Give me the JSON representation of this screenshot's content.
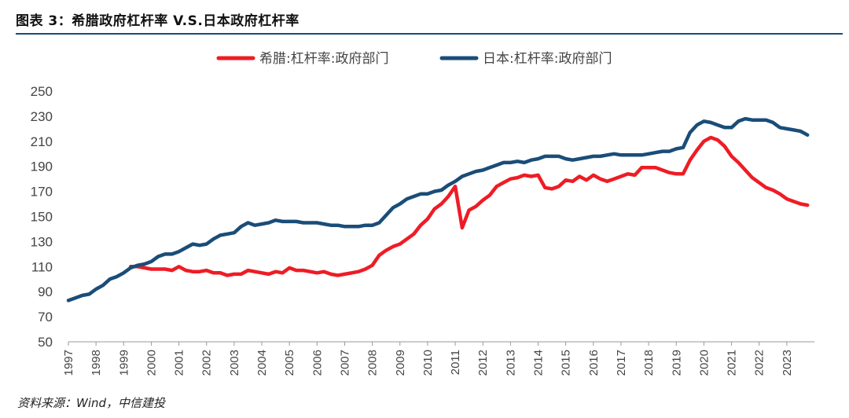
{
  "header": {
    "title": "图表 3：希腊政府杠杆率 V.S.日本政府杠杆率"
  },
  "footer": {
    "source": "资料来源：Wind，中信建投"
  },
  "chart_data": {
    "type": "line",
    "title": "图表 3：希腊政府杠杆率 V.S.日本政府杠杆率",
    "xlabel": "",
    "ylabel": "",
    "xlim": [
      1997,
      2024
    ],
    "ylim": [
      50,
      250
    ],
    "yticks": [
      50,
      70,
      90,
      110,
      130,
      150,
      170,
      190,
      210,
      230,
      250
    ],
    "xticks": [
      "1997",
      "1998",
      "1999",
      "2000",
      "2001",
      "2002",
      "2003",
      "2004",
      "2005",
      "2006",
      "2007",
      "2008",
      "2009",
      "2010",
      "2011",
      "2012",
      "2013",
      "2014",
      "2015",
      "2016",
      "2017",
      "2018",
      "2019",
      "2020",
      "2021",
      "2022",
      "2023"
    ],
    "grid": false,
    "legend_position": "top",
    "series": [
      {
        "name": "希腊:杠杆率:政府部门",
        "color": "#ee1c25",
        "points": [
          [
            1999.25,
            110
          ],
          [
            1999.5,
            110
          ],
          [
            1999.75,
            109
          ],
          [
            2000,
            108
          ],
          [
            2000.25,
            108
          ],
          [
            2000.5,
            108
          ],
          [
            2000.75,
            107
          ],
          [
            2001,
            110
          ],
          [
            2001.25,
            107
          ],
          [
            2001.5,
            106
          ],
          [
            2001.75,
            106
          ],
          [
            2002,
            107
          ],
          [
            2002.25,
            105
          ],
          [
            2002.5,
            105
          ],
          [
            2002.75,
            103
          ],
          [
            2003,
            104
          ],
          [
            2003.25,
            104
          ],
          [
            2003.5,
            107
          ],
          [
            2003.75,
            106
          ],
          [
            2004,
            105
          ],
          [
            2004.25,
            104
          ],
          [
            2004.5,
            106
          ],
          [
            2004.75,
            105
          ],
          [
            2005,
            109
          ],
          [
            2005.25,
            107
          ],
          [
            2005.5,
            107
          ],
          [
            2005.75,
            106
          ],
          [
            2006,
            105
          ],
          [
            2006.25,
            106
          ],
          [
            2006.5,
            104
          ],
          [
            2006.75,
            103
          ],
          [
            2007,
            104
          ],
          [
            2007.25,
            105
          ],
          [
            2007.5,
            106
          ],
          [
            2007.75,
            108
          ],
          [
            2008,
            111
          ],
          [
            2008.25,
            119
          ],
          [
            2008.5,
            123
          ],
          [
            2008.75,
            126
          ],
          [
            2009,
            128
          ],
          [
            2009.25,
            132
          ],
          [
            2009.5,
            136
          ],
          [
            2009.75,
            143
          ],
          [
            2010,
            148
          ],
          [
            2010.25,
            156
          ],
          [
            2010.5,
            160
          ],
          [
            2010.75,
            166
          ],
          [
            2011,
            174
          ],
          [
            2011.25,
            141
          ],
          [
            2011.5,
            155
          ],
          [
            2011.75,
            158
          ],
          [
            2012,
            163
          ],
          [
            2012.25,
            167
          ],
          [
            2012.5,
            174
          ],
          [
            2012.75,
            177
          ],
          [
            2013,
            180
          ],
          [
            2013.25,
            181
          ],
          [
            2013.5,
            183
          ],
          [
            2013.75,
            182
          ],
          [
            2014,
            183
          ],
          [
            2014.25,
            173
          ],
          [
            2014.5,
            172
          ],
          [
            2014.75,
            174
          ],
          [
            2015,
            179
          ],
          [
            2015.25,
            178
          ],
          [
            2015.5,
            182
          ],
          [
            2015.75,
            179
          ],
          [
            2016,
            183
          ],
          [
            2016.25,
            180
          ],
          [
            2016.5,
            178
          ],
          [
            2016.75,
            180
          ],
          [
            2017,
            182
          ],
          [
            2017.25,
            184
          ],
          [
            2017.5,
            183
          ],
          [
            2017.75,
            189
          ],
          [
            2018,
            189
          ],
          [
            2018.25,
            189
          ],
          [
            2018.5,
            187
          ],
          [
            2018.75,
            185
          ],
          [
            2019,
            184
          ],
          [
            2019.25,
            184
          ],
          [
            2019.5,
            195
          ],
          [
            2019.75,
            203
          ],
          [
            2020,
            210
          ],
          [
            2020.25,
            213
          ],
          [
            2020.5,
            211
          ],
          [
            2020.75,
            206
          ],
          [
            2021,
            198
          ],
          [
            2021.25,
            193
          ],
          [
            2021.5,
            187
          ],
          [
            2021.75,
            181
          ],
          [
            2022,
            177
          ],
          [
            2022.25,
            173
          ],
          [
            2022.5,
            171
          ],
          [
            2022.75,
            168
          ],
          [
            2023,
            164
          ],
          [
            2023.25,
            162
          ],
          [
            2023.5,
            160
          ],
          [
            2023.75,
            159
          ]
        ]
      },
      {
        "name": "日本:杠杆率:政府部门",
        "color": "#1a4d78",
        "points": [
          [
            1997,
            83
          ],
          [
            1997.25,
            85
          ],
          [
            1997.5,
            87
          ],
          [
            1997.75,
            88
          ],
          [
            1998,
            92
          ],
          [
            1998.25,
            95
          ],
          [
            1998.5,
            100
          ],
          [
            1998.75,
            102
          ],
          [
            1999,
            105
          ],
          [
            1999.25,
            109
          ],
          [
            1999.5,
            111
          ],
          [
            1999.75,
            112
          ],
          [
            2000,
            114
          ],
          [
            2000.25,
            118
          ],
          [
            2000.5,
            120
          ],
          [
            2000.75,
            120
          ],
          [
            2001,
            122
          ],
          [
            2001.25,
            125
          ],
          [
            2001.5,
            128
          ],
          [
            2001.75,
            127
          ],
          [
            2002,
            128
          ],
          [
            2002.25,
            132
          ],
          [
            2002.5,
            135
          ],
          [
            2002.75,
            136
          ],
          [
            2003,
            137
          ],
          [
            2003.25,
            142
          ],
          [
            2003.5,
            145
          ],
          [
            2003.75,
            143
          ],
          [
            2004,
            144
          ],
          [
            2004.25,
            145
          ],
          [
            2004.5,
            147
          ],
          [
            2004.75,
            146
          ],
          [
            2005,
            146
          ],
          [
            2005.25,
            146
          ],
          [
            2005.5,
            145
          ],
          [
            2005.75,
            145
          ],
          [
            2006,
            145
          ],
          [
            2006.25,
            144
          ],
          [
            2006.5,
            143
          ],
          [
            2006.75,
            143
          ],
          [
            2007,
            142
          ],
          [
            2007.25,
            142
          ],
          [
            2007.5,
            142
          ],
          [
            2007.75,
            143
          ],
          [
            2008,
            143
          ],
          [
            2008.25,
            145
          ],
          [
            2008.5,
            151
          ],
          [
            2008.75,
            157
          ],
          [
            2009,
            160
          ],
          [
            2009.25,
            164
          ],
          [
            2009.5,
            166
          ],
          [
            2009.75,
            168
          ],
          [
            2010,
            168
          ],
          [
            2010.25,
            170
          ],
          [
            2010.5,
            171
          ],
          [
            2010.75,
            175
          ],
          [
            2011,
            178
          ],
          [
            2011.25,
            182
          ],
          [
            2011.5,
            184
          ],
          [
            2011.75,
            186
          ],
          [
            2012,
            187
          ],
          [
            2012.25,
            189
          ],
          [
            2012.5,
            191
          ],
          [
            2012.75,
            193
          ],
          [
            2013,
            193
          ],
          [
            2013.25,
            194
          ],
          [
            2013.5,
            193
          ],
          [
            2013.75,
            195
          ],
          [
            2014,
            196
          ],
          [
            2014.25,
            198
          ],
          [
            2014.5,
            198
          ],
          [
            2014.75,
            198
          ],
          [
            2015,
            196
          ],
          [
            2015.25,
            195
          ],
          [
            2015.5,
            196
          ],
          [
            2015.75,
            197
          ],
          [
            2016,
            198
          ],
          [
            2016.25,
            198
          ],
          [
            2016.5,
            199
          ],
          [
            2016.75,
            200
          ],
          [
            2017,
            199
          ],
          [
            2017.25,
            199
          ],
          [
            2017.5,
            199
          ],
          [
            2017.75,
            199
          ],
          [
            2018,
            200
          ],
          [
            2018.25,
            201
          ],
          [
            2018.5,
            202
          ],
          [
            2018.75,
            202
          ],
          [
            2019,
            204
          ],
          [
            2019.25,
            205
          ],
          [
            2019.5,
            217
          ],
          [
            2019.75,
            223
          ],
          [
            2020,
            226
          ],
          [
            2020.25,
            225
          ],
          [
            2020.5,
            223
          ],
          [
            2020.75,
            221
          ],
          [
            2021,
            221
          ],
          [
            2021.25,
            226
          ],
          [
            2021.5,
            228
          ],
          [
            2021.75,
            227
          ],
          [
            2022,
            227
          ],
          [
            2022.25,
            227
          ],
          [
            2022.5,
            225
          ],
          [
            2022.75,
            221
          ],
          [
            2023,
            220
          ],
          [
            2023.25,
            219
          ],
          [
            2023.5,
            218
          ],
          [
            2023.75,
            215
          ]
        ]
      }
    ]
  }
}
